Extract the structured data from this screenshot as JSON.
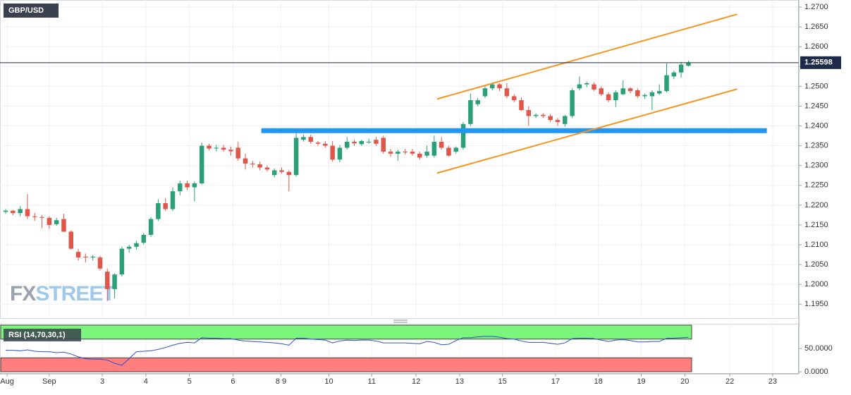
{
  "chart_data": [
    {
      "type": "candlestick",
      "title": "GBP/USD",
      "watermark": [
        "FX",
        "STREET"
      ],
      "up_color": "#2b9f75",
      "down_color": "#e0574a",
      "open": [
        1.2183,
        1.2186,
        1.218,
        1.219,
        1.2172,
        1.217,
        1.2168,
        1.2152,
        1.2165,
        1.2133,
        1.2082,
        1.207,
        1.2068,
        1.2068,
        1.2032,
        1.1988,
        1.2025,
        1.209,
        1.2095,
        1.2105,
        1.2125,
        1.2165,
        1.2205,
        1.219,
        1.2235,
        1.2255,
        1.2245,
        1.2255,
        1.235,
        1.2343,
        1.2345,
        1.234,
        1.2345,
        1.2318,
        1.2305,
        1.2303,
        1.2295,
        1.2276,
        1.2288,
        1.2284,
        1.2276,
        1.2365,
        1.2372,
        1.2358,
        1.2355,
        1.235,
        1.2315,
        1.2345,
        1.236,
        1.2354,
        1.236,
        1.2365,
        1.237,
        1.2335,
        1.233,
        1.2335,
        1.2335,
        1.233,
        1.2325,
        1.2325,
        1.236,
        1.2345,
        1.2335,
        1.2345,
        1.2405,
        1.2455,
        1.2475,
        1.2495,
        1.2505,
        1.2495,
        1.2475,
        1.2465,
        1.244,
        1.2425,
        1.2428,
        1.2425,
        1.2415,
        1.2405,
        1.2425,
        1.2495,
        1.2505,
        1.2505,
        1.2495,
        1.248,
        1.2465,
        1.248,
        1.2495,
        1.249,
        1.2475,
        1.2475,
        1.2482,
        1.2488,
        1.2525,
        1.2535,
        1.2552
      ],
      "high": [
        1.219,
        1.2188,
        1.2198,
        1.2228,
        1.218,
        1.2175,
        1.2172,
        1.2168,
        1.2178,
        1.2136,
        1.209,
        1.2078,
        1.2074,
        1.2072,
        1.204,
        1.2028,
        1.2095,
        1.21,
        1.211,
        1.213,
        1.217,
        1.2215,
        1.2218,
        1.2245,
        1.2262,
        1.2262,
        1.226,
        1.2358,
        1.2355,
        1.2352,
        1.2352,
        1.2348,
        1.236,
        1.233,
        1.2312,
        1.231,
        1.23,
        1.2292,
        1.2295,
        1.2288,
        1.2385,
        1.2378,
        1.2378,
        1.2362,
        1.2362,
        1.2362,
        1.2352,
        1.2372,
        1.2365,
        1.2365,
        1.2368,
        1.2372,
        1.2375,
        1.2342,
        1.234,
        1.2342,
        1.2342,
        1.2335,
        1.235,
        1.2375,
        1.2372,
        1.235,
        1.2348,
        1.241,
        1.2482,
        1.247,
        1.25,
        1.251,
        1.2508,
        1.2508,
        1.248,
        1.2472,
        1.245,
        1.2432,
        1.2432,
        1.243,
        1.242,
        1.2428,
        1.2495,
        1.2525,
        1.2512,
        1.251,
        1.25,
        1.2485,
        1.249,
        1.2515,
        1.2498,
        1.2495,
        1.2482,
        1.249,
        1.2505,
        1.2558,
        1.254,
        1.2562,
        1.2565
      ],
      "low": [
        1.2178,
        1.2175,
        1.2172,
        1.2165,
        1.216,
        1.2142,
        1.214,
        1.2148,
        1.2132,
        1.2088,
        1.206,
        1.2055,
        1.206,
        1.2035,
        1.1958,
        1.1965,
        1.202,
        1.208,
        1.2088,
        1.21,
        1.212,
        1.216,
        1.2185,
        1.2185,
        1.2225,
        1.2238,
        1.221,
        1.2252,
        1.2338,
        1.2336,
        1.2335,
        1.2325,
        1.2312,
        1.229,
        1.2295,
        1.2288,
        1.2285,
        1.227,
        1.228,
        1.2235,
        1.2272,
        1.236,
        1.2355,
        1.235,
        1.2345,
        1.231,
        1.2308,
        1.234,
        1.235,
        1.235,
        1.2355,
        1.235,
        1.233,
        1.2322,
        1.2312,
        1.2328,
        1.2325,
        1.2315,
        1.232,
        1.232,
        1.234,
        1.2322,
        1.233,
        1.234,
        1.24,
        1.245,
        1.247,
        1.249,
        1.2488,
        1.247,
        1.246,
        1.2438,
        1.24,
        1.242,
        1.242,
        1.241,
        1.24,
        1.2398,
        1.242,
        1.249,
        1.2498,
        1.2488,
        1.2475,
        1.246,
        1.2448,
        1.2478,
        1.2482,
        1.247,
        1.2468,
        1.244,
        1.2478,
        1.2485,
        1.2518,
        1.2522,
        1.255
      ],
      "close": [
        1.2186,
        1.218,
        1.219,
        1.2172,
        1.217,
        1.2168,
        1.215,
        1.2162,
        1.2133,
        1.209,
        1.2068,
        1.2068,
        1.207,
        1.204,
        1.1988,
        1.2025,
        1.209,
        1.2095,
        1.2104,
        1.2125,
        1.2165,
        1.2205,
        1.219,
        1.2235,
        1.2255,
        1.2245,
        1.2255,
        1.235,
        1.2343,
        1.2345,
        1.234,
        1.2336,
        1.2318,
        1.2305,
        1.2303,
        1.2295,
        1.229,
        1.2288,
        1.2284,
        1.2276,
        1.237,
        1.2372,
        1.236,
        1.2355,
        1.235,
        1.2315,
        1.2345,
        1.236,
        1.2356,
        1.2362,
        1.236,
        1.2355,
        1.2335,
        1.233,
        1.2335,
        1.2333,
        1.233,
        1.232,
        1.2335,
        1.236,
        1.2345,
        1.2325,
        1.2345,
        1.2405,
        1.2465,
        1.2465,
        1.2495,
        1.2505,
        1.2495,
        1.2475,
        1.2465,
        1.244,
        1.2425,
        1.2428,
        1.2425,
        1.2415,
        1.241,
        1.2425,
        1.249,
        1.2505,
        1.2508,
        1.2492,
        1.248,
        1.2465,
        1.2485,
        1.2495,
        1.2488,
        1.2475,
        1.2478,
        1.2485,
        1.2488,
        1.2528,
        1.2535,
        1.2555,
        1.25598
      ],
      "xlim": [
        -0.78,
        109.2
      ],
      "xticks": [
        {
          "value": 0.2,
          "label": "Aug"
        },
        {
          "value": 6,
          "label": "Sep"
        },
        {
          "value": 13.3,
          "label": "3"
        },
        {
          "value": 19.3,
          "label": "4"
        },
        {
          "value": 25.3,
          "label": "5"
        },
        {
          "value": 31.3,
          "label": "6"
        },
        {
          "value": 37.9,
          "label": "8 9"
        },
        {
          "value": 44.5,
          "label": "10"
        },
        {
          "value": 50.4,
          "label": "11"
        },
        {
          "value": 56.5,
          "label": "12"
        },
        {
          "value": 62.5,
          "label": "13"
        },
        {
          "value": 68.4,
          "label": "15"
        },
        {
          "value": 75.7,
          "label": "17"
        },
        {
          "value": 81.6,
          "label": "18"
        },
        {
          "value": 87.5,
          "label": "19"
        },
        {
          "value": 93.5,
          "label": "20"
        },
        {
          "value": 99.7,
          "label": "22"
        },
        {
          "value": 105.6,
          "label": "23"
        }
      ],
      "ylim": [
        1.1913,
        1.2718
      ],
      "yticks": [
        {
          "value": 1.27,
          "label": "1.2700"
        },
        {
          "value": 1.265,
          "label": "1.2650"
        },
        {
          "value": 1.26,
          "label": "1.2600"
        },
        {
          "value": 1.255,
          "label": "1.2550"
        },
        {
          "value": 1.25,
          "label": "1.2500"
        },
        {
          "value": 1.245,
          "label": "1.2450"
        },
        {
          "value": 1.24,
          "label": "1.2400"
        },
        {
          "value": 1.235,
          "label": "1.2350"
        },
        {
          "value": 1.23,
          "label": "1.2300"
        },
        {
          "value": 1.225,
          "label": "1.2250"
        },
        {
          "value": 1.22,
          "label": "1.2200"
        },
        {
          "value": 1.215,
          "label": "1.2150"
        },
        {
          "value": 1.21,
          "label": "1.2100"
        },
        {
          "value": 1.205,
          "label": "1.2050"
        },
        {
          "value": 1.2,
          "label": "1.2000"
        },
        {
          "value": 1.195,
          "label": "1.1950"
        }
      ],
      "grid": true,
      "hlines": [
        {
          "value": 1.2388,
          "from": 35.2,
          "to": 104.8,
          "color": "#2196f3"
        }
      ],
      "trendlines": [
        {
          "color": "#f7941d",
          "points": [
            [
              59.4,
              1.2468
            ],
            [
              100.7,
              1.2682
            ]
          ]
        },
        {
          "color": "#f7941d",
          "points": [
            [
              59.4,
              1.2281
            ],
            [
              100.7,
              1.2493
            ]
          ]
        }
      ],
      "last_price_color": "#1e2a4a"
    },
    {
      "type": "line",
      "title": "RSI (14,70,30,1)",
      "color": "#3050c8",
      "values": [
        46,
        46,
        45,
        47,
        44,
        43,
        43,
        41,
        42,
        38,
        32,
        28,
        27,
        27,
        25,
        18,
        14,
        28,
        43,
        44,
        45,
        48,
        52,
        57,
        61,
        63,
        62,
        73,
        72,
        72,
        71,
        71,
        68,
        66,
        65,
        64,
        63,
        62,
        60,
        57,
        72,
        72,
        70,
        69,
        68,
        62,
        66,
        68,
        67,
        68,
        68,
        66,
        62,
        62,
        62,
        62,
        61,
        60,
        65,
        63,
        58,
        59,
        67,
        73,
        73,
        75,
        76,
        76,
        74,
        71,
        70,
        66,
        63,
        63,
        63,
        61,
        59,
        62,
        71,
        72,
        72,
        71,
        68,
        65,
        68,
        69,
        67,
        64,
        64,
        65,
        65,
        72,
        72,
        73,
        74
      ],
      "ylim": [
        -4.5,
        101.5
      ],
      "yticks": [
        {
          "value": 50,
          "label": "50.0000"
        },
        {
          "value": 0,
          "label": "0.0000"
        }
      ],
      "zones": [
        {
          "range": [
            70,
            100
          ],
          "color": "#7cf57c"
        },
        {
          "range": [
            0,
            30
          ],
          "color": "#ff7f7f"
        }
      ]
    }
  ]
}
